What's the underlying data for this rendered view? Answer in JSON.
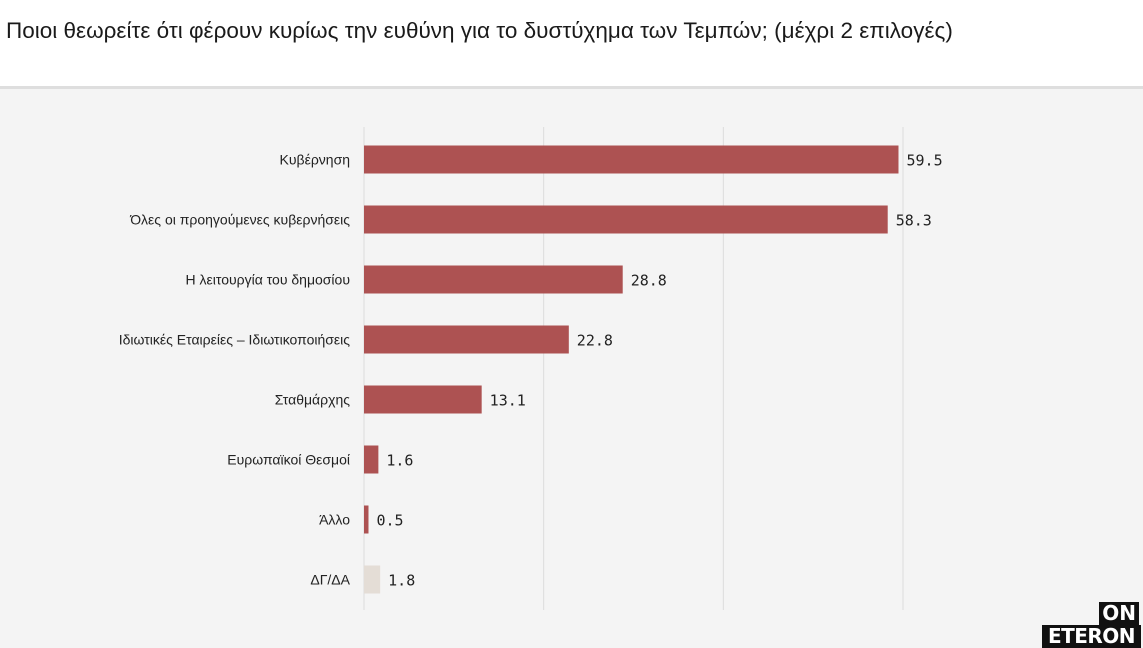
{
  "header": {
    "title": "Ποιοι θεωρείτε ότι φέρουν κυρίως την ευθύνη για το δυστύχημα των Τεμπών; (μέχρι 2 επιλογές)"
  },
  "logo": {
    "line1": "ON",
    "line2": "ETERON"
  },
  "colors": {
    "bar": "#ad5252",
    "bar_muted": "#e4ddd6",
    "grid": "#dcdcdc",
    "background": "#f4f4f4"
  },
  "chart_data": {
    "type": "bar",
    "orientation": "horizontal",
    "title": "Ποιοι θεωρείτε ότι φέρουν κυρίως την ευθύνη για το δυστύχημα των Τεμπών; (μέχρι 2 επιλογές)",
    "categories": [
      "Κυβέρνηση",
      "Όλες οι προηγούμενες κυβερνήσεις",
      "Η λειτουργία του δημοσίου",
      "Ιδιωτικές Εταιρείες – Ιδιωτικοποιήσεις",
      "Σταθμάρχης",
      "Ευρωπαϊκοί Θεσμοί",
      "Άλλο",
      "ΔΓ/ΔΑ"
    ],
    "values": [
      59.5,
      58.3,
      28.8,
      22.8,
      13.1,
      1.6,
      0.5,
      1.8
    ],
    "value_labels": [
      "59.5",
      "58.3",
      "28.8",
      "22.8",
      "13.1",
      "1.6",
      "0.5",
      "1.8"
    ],
    "muted": [
      false,
      false,
      false,
      false,
      false,
      false,
      false,
      true
    ],
    "xlim": [
      0,
      60
    ],
    "grid_values": [
      0,
      20,
      40,
      60
    ],
    "grid": true,
    "legend": "none"
  }
}
